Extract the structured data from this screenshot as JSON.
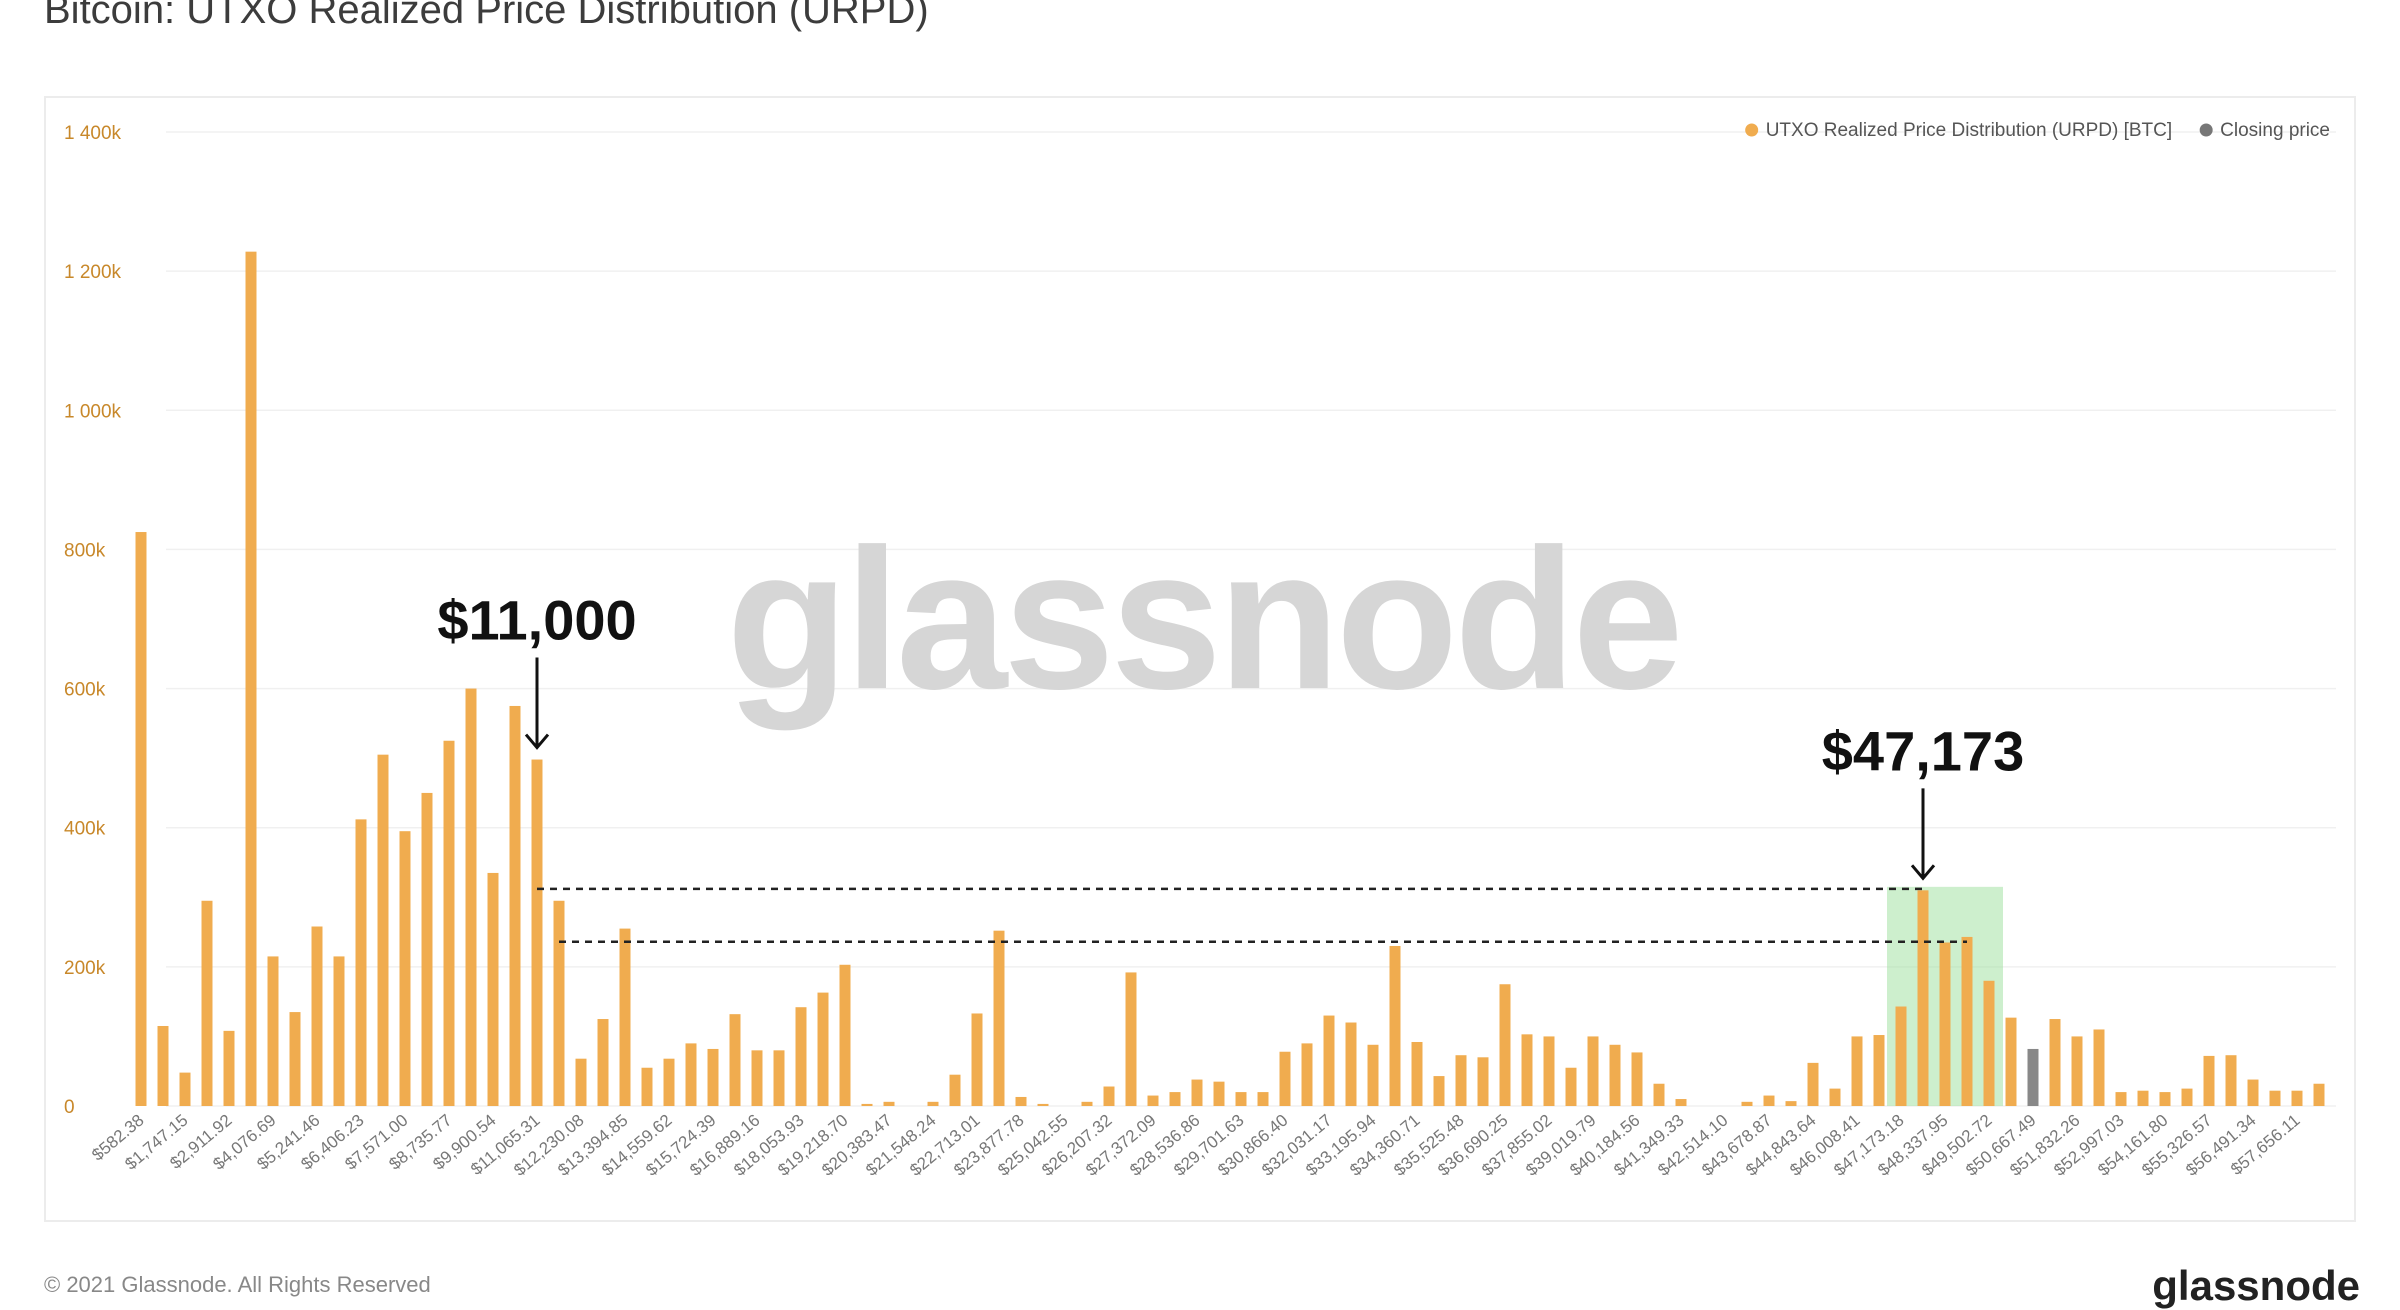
{
  "page": {
    "title": "Bitcoin: UTXO Realized Price Distribution (URPD)",
    "copyright": "© 2021 Glassnode. All Rights Reserved",
    "footer_logo": "glassnode",
    "watermark": "glassnode"
  },
  "colors": {
    "bar": "#f0ac4f",
    "closing_price_bar": "#888888",
    "highlight": "#9be09b",
    "axis_text": "#c8882a"
  },
  "chart_data": {
    "type": "bar",
    "title": "Bitcoin: UTXO Realized Price Distribution (URPD)",
    "ylim": [
      0,
      1400000
    ],
    "yticks": [
      0,
      200000,
      400000,
      600000,
      800000,
      1000000,
      1200000,
      1400000
    ],
    "ytick_labels": [
      "0",
      "200k",
      "400k",
      "600k",
      "800k",
      "1 000k",
      "1 200k",
      "1 400k"
    ],
    "xtick_labels": [
      "$582.38",
      "$1,747.15",
      "$2,911.92",
      "$4,076.69",
      "$5,241.46",
      "$6,406.23",
      "$7,571.00",
      "$8,735.77",
      "$9,900.54",
      "$11,065.31",
      "$12,230.08",
      "$13,394.85",
      "$14,559.62",
      "$15,724.39",
      "$16,889.16",
      "$18,053.93",
      "$19,218.70",
      "$20,383.47",
      "$21,548.24",
      "$22,713.01",
      "$23,877.78",
      "$25,042.55",
      "$26,207.32",
      "$27,372.09",
      "$28,536.86",
      "$29,701.63",
      "$30,866.40",
      "$32,031.17",
      "$33,195.94",
      "$34,360.71",
      "$35,525.48",
      "$36,690.25",
      "$37,855.02",
      "$39,019.79",
      "$40,184.56",
      "$41,349.33",
      "$42,514.10",
      "$43,678.87",
      "$44,843.64",
      "$46,008.41",
      "$47,173.18",
      "$48,337.95",
      "$49,502.72",
      "$50,667.49",
      "$51,832.26",
      "$52,997.03",
      "$54,161.80",
      "$55,326.57",
      "$56,491.34",
      "$57,656.11"
    ],
    "legend": [
      {
        "label": "UTXO Realized Price Distribution (URPD) [BTC]",
        "color": "#f0ac4f"
      },
      {
        "label": "Closing price",
        "color": "#777777"
      }
    ],
    "legend_position": "top-right",
    "series": [
      {
        "name": "UTXO Realized Price Distribution (URPD) [BTC]",
        "values": [
          825000,
          115000,
          48000,
          295000,
          108000,
          1228000,
          215000,
          135000,
          258000,
          215000,
          412000,
          505000,
          395000,
          450000,
          525000,
          600000,
          335000,
          575000,
          498000,
          295000,
          68000,
          125000,
          255000,
          55000,
          68000,
          90000,
          82000,
          132000,
          80000,
          80000,
          142000,
          163000,
          203000,
          3000,
          6000,
          0,
          6000,
          45000,
          133000,
          252000,
          13000,
          3000,
          0,
          6000,
          28000,
          192000,
          15000,
          20000,
          38000,
          35000,
          20000,
          20000,
          78000,
          90000,
          130000,
          120000,
          88000,
          230000,
          92000,
          43000,
          73000,
          70000,
          175000,
          103000,
          100000,
          55000,
          100000,
          88000,
          77000,
          32000,
          10000,
          0,
          0,
          6000,
          15000,
          7000,
          62000,
          25000,
          100000,
          102000,
          143000,
          310000,
          235000,
          243000,
          180000,
          127000,
          0,
          125000,
          100000,
          110000,
          20000,
          22000,
          20000,
          25000,
          72000,
          73000,
          38000,
          22000,
          22000,
          32000
        ]
      }
    ],
    "closing_price_bar": {
      "name": "Closing price",
      "index": 86,
      "value": 82000
    },
    "highlight_range": {
      "from_index": 80,
      "to_index": 84,
      "value": 315000
    },
    "annotations": [
      {
        "label": "$11,000",
        "index": 18,
        "value": 498000
      },
      {
        "label": "$47,173",
        "index": 81,
        "value": 310000
      }
    ],
    "reference_lines": [
      {
        "from_index": 18,
        "to_index": 81,
        "value": 312000
      },
      {
        "from_index": 19,
        "to_index": 83,
        "value": 236000
      }
    ],
    "grid": true
  }
}
